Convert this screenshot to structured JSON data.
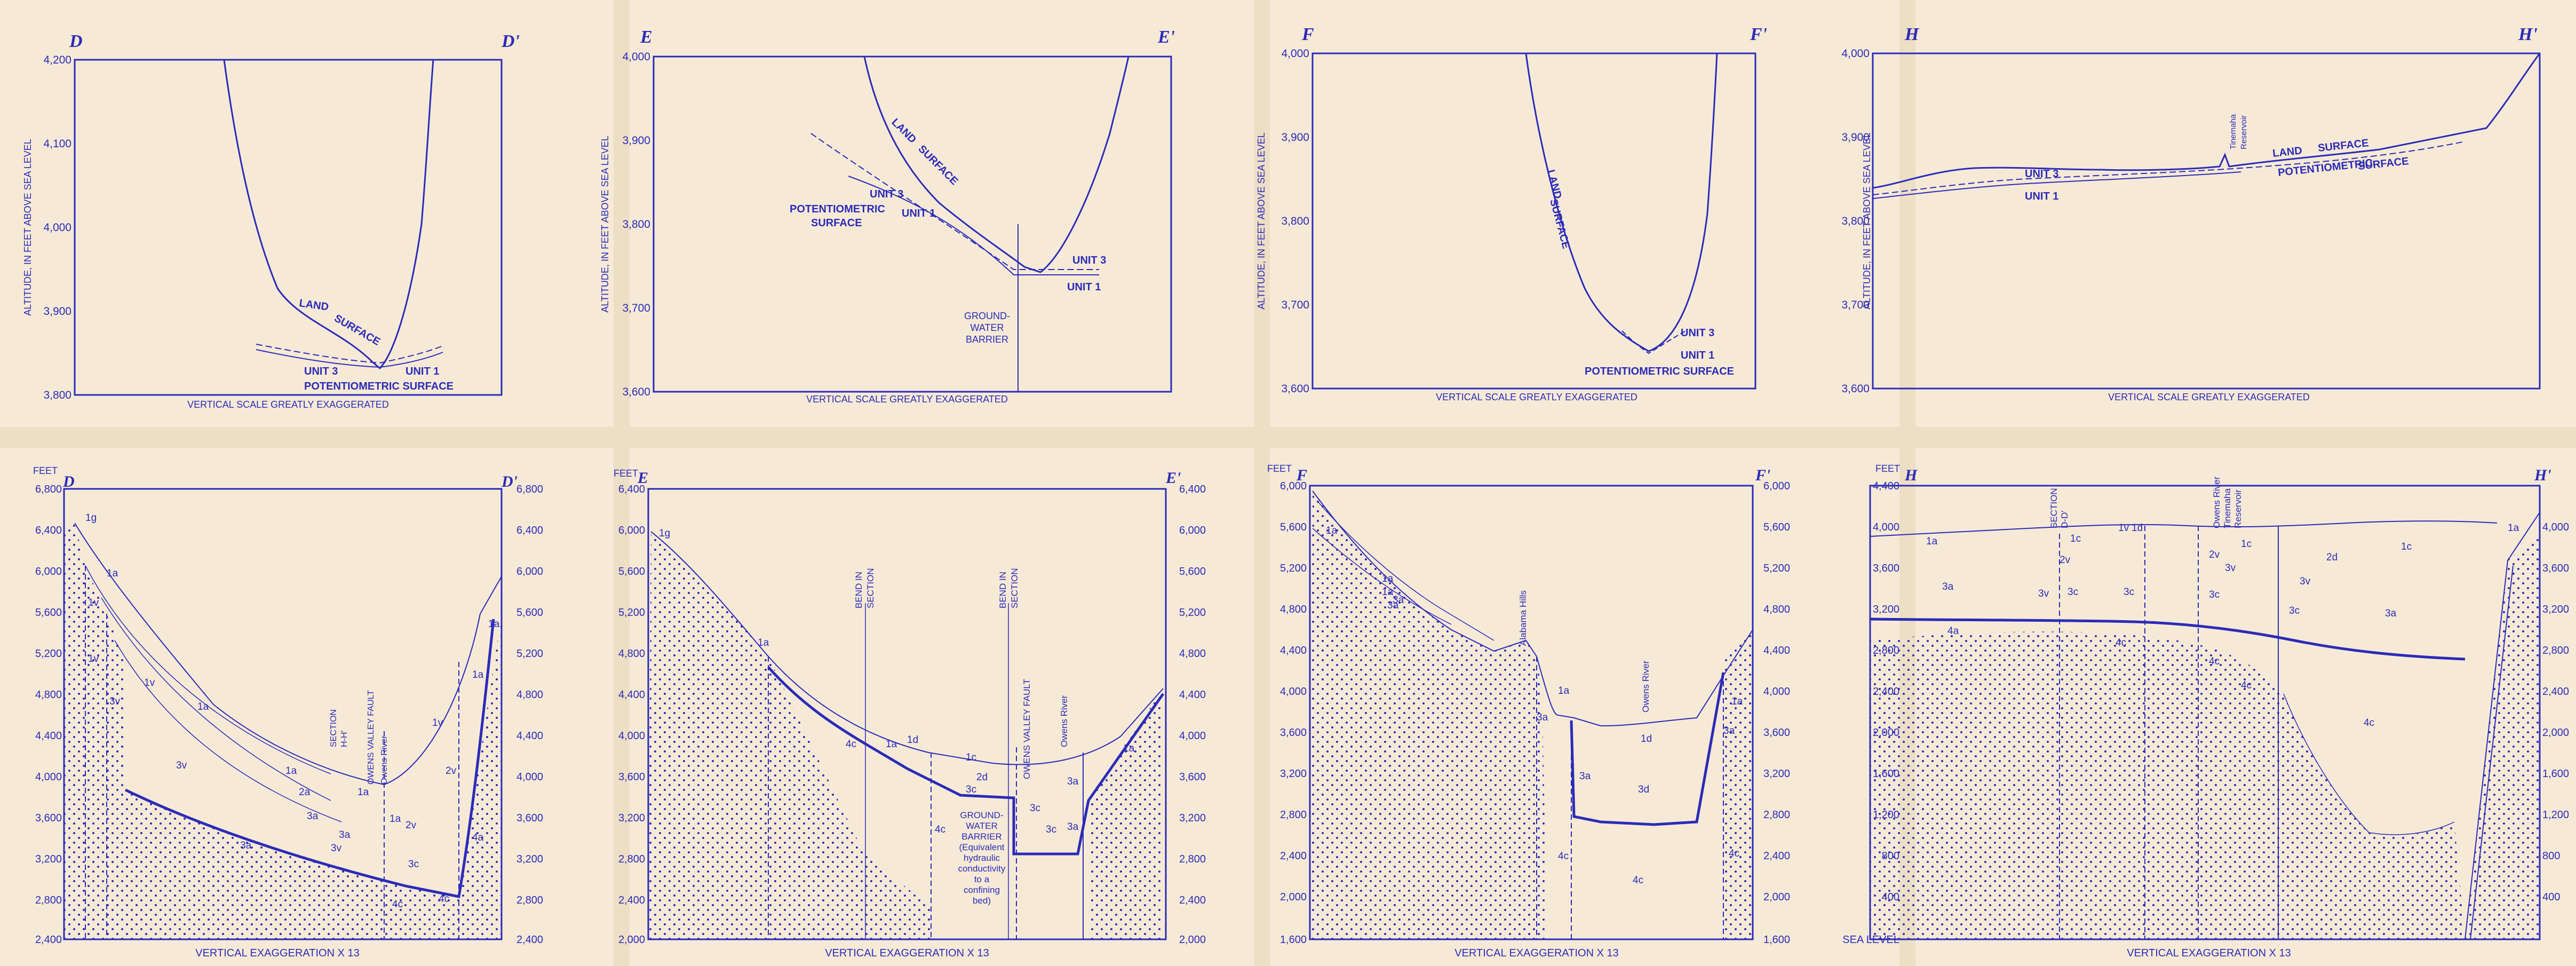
{
  "colors": {
    "ink": "#2b2bb8",
    "paper": "#f6ead7",
    "paper_fold": "#ead9bf"
  },
  "top_panels": [
    {
      "id": "D",
      "left_label": "D",
      "right_label": "D'",
      "y_ticks": [
        "4,200",
        "4,100",
        "4,000",
        "3,900",
        "3,800"
      ],
      "y_axis_label": "ALTITUDE, IN FEET ABOVE SEA LEVEL",
      "caption": "VERTICAL SCALE GREATLY EXAGGERATED",
      "labels": [
        "LAND",
        "SURFACE",
        "UNIT 3",
        "UNIT 1",
        "POTENTIOMETRIC SURFACE"
      ]
    },
    {
      "id": "E",
      "left_label": "E",
      "right_label": "E'",
      "y_ticks": [
        "4,000",
        "3,900",
        "3,800",
        "3,700",
        "3,600"
      ],
      "y_axis_label": "ALTITUDE, IN FEET ABOVE SEA LEVEL",
      "caption": "VERTICAL SCALE GREATLY EXAGGERATED",
      "labels": [
        "LAND",
        "SURFACE",
        "UNIT 3",
        "UNIT 1",
        "POTENTIOMETRIC",
        "SURFACE",
        "UNIT 3",
        "UNIT 1",
        "GROUND-",
        "WATER",
        "BARRIER"
      ]
    },
    {
      "id": "F",
      "left_label": "F",
      "right_label": "F'",
      "y_ticks": [
        "4,000",
        "3,900",
        "3,800",
        "3,700",
        "3,600"
      ],
      "y_axis_label": "ALTITUDE, IN FEET ABOVE SEA LEVEL",
      "caption": "VERTICAL SCALE GREATLY EXAGGERATED",
      "labels": [
        "LAND",
        "SURFACE",
        "UNIT 3",
        "UNIT 1",
        "POTENTIOMETRIC SURFACE"
      ]
    },
    {
      "id": "H",
      "left_label": "H",
      "right_label": "H'",
      "y_ticks": [
        "4,000",
        "3,900",
        "3,800",
        "3,700",
        "3,600"
      ],
      "y_axis_label": "ALTITUDE, IN FEET ABOVE SEA LEVEL",
      "caption": "VERTICAL SCALE GREATLY EXAGGERATED",
      "labels": [
        "UNIT 3",
        "UNIT 1",
        "LAND",
        "SURFACE",
        "POTENTIOMETRIC",
        "SURFACE",
        "Tinemaha",
        "Reservoir"
      ]
    }
  ],
  "bottom_panels": [
    {
      "id": "D",
      "left_label": "D",
      "right_label": "D'",
      "feet_label": "FEET",
      "y_ticks": [
        "6,800",
        "6,400",
        "6,000",
        "5,600",
        "5,200",
        "4,800",
        "4,400",
        "4,000",
        "3,600",
        "3,200",
        "2,800",
        "2,400"
      ],
      "caption": "VERTICAL EXAGGERATION X 13",
      "unit_labels": [
        "1g",
        "1a",
        "1v",
        "1v",
        "3v",
        "1a",
        "1v",
        "3v",
        "1a",
        "2a",
        "3a",
        "3a",
        "3a",
        "3v",
        "1a",
        "1v",
        "2v",
        "2v",
        "3c",
        "4a",
        "4c",
        "4c",
        "1a",
        "1a",
        "1a"
      ],
      "annotations": [
        "SECTION",
        "H-H'",
        "OWENS VALLEY FAULT",
        "Owens River"
      ]
    },
    {
      "id": "E",
      "left_label": "E",
      "right_label": "E'",
      "feet_label": "FEET",
      "y_ticks": [
        "6,400",
        "6,000",
        "5,600",
        "5,200",
        "4,800",
        "4,400",
        "4,000",
        "3,600",
        "3,200",
        "2,800",
        "2,400",
        "2,000"
      ],
      "caption": "VERTICAL EXAGGERATION X 13",
      "unit_labels": [
        "1g",
        "1a",
        "4c",
        "1a",
        "1d",
        "1c",
        "2d",
        "3c",
        "3c",
        "4c",
        "3c",
        "3a",
        "1a",
        "3a"
      ],
      "annotations": [
        "BEND IN",
        "SECTION",
        "BEND IN",
        "SECTION",
        "OWENS VALLEY FAULT",
        "Owens River",
        "GROUND-",
        "WATER",
        "BARRIER",
        "(Equivalent",
        "hydraulic",
        "conductivity",
        "to a",
        "confining",
        "bed)"
      ]
    },
    {
      "id": "F",
      "left_label": "F",
      "right_label": "F'",
      "feet_label": "FEET",
      "y_ticks": [
        "6,000",
        "5,600",
        "5,200",
        "4,800",
        "4,400",
        "4,000",
        "3,600",
        "3,200",
        "2,800",
        "2,400",
        "2,000",
        "1,600"
      ],
      "caption": "VERTICAL EXAGGERATION X 13",
      "unit_labels": [
        "1a",
        "1a",
        "3a",
        "1a",
        "3a",
        "3a",
        "1a",
        "1d",
        "1a",
        "3a",
        "3d",
        "3a",
        "4c",
        "4c",
        "4c"
      ],
      "annotations": [
        "Alabama Hills",
        "Owens River"
      ]
    },
    {
      "id": "H",
      "left_label": "H",
      "right_label": "H'",
      "feet_label": "FEET",
      "y_ticks": [
        "4,400",
        "4,000",
        "3,600",
        "3,200",
        "2,800",
        "2,400",
        "2,000",
        "1,600",
        "1,200",
        "800",
        "400",
        "SEA LEVEL"
      ],
      "caption": "VERTICAL EXAGGERATION X 13",
      "unit_labels": [
        "1a",
        "1c",
        "1v",
        "1d",
        "2v",
        "3a",
        "3v",
        "3c",
        "3c",
        "2v",
        "3v",
        "1c",
        "2d",
        "3c",
        "3v",
        "1c",
        "3a",
        "1a",
        "3c",
        "4a",
        "4c",
        "4c",
        "4c",
        "4c"
      ],
      "annotations": [
        "SECTION",
        "D-D'",
        "Owens River",
        "Tinemaha",
        "Reservoir"
      ]
    }
  ]
}
